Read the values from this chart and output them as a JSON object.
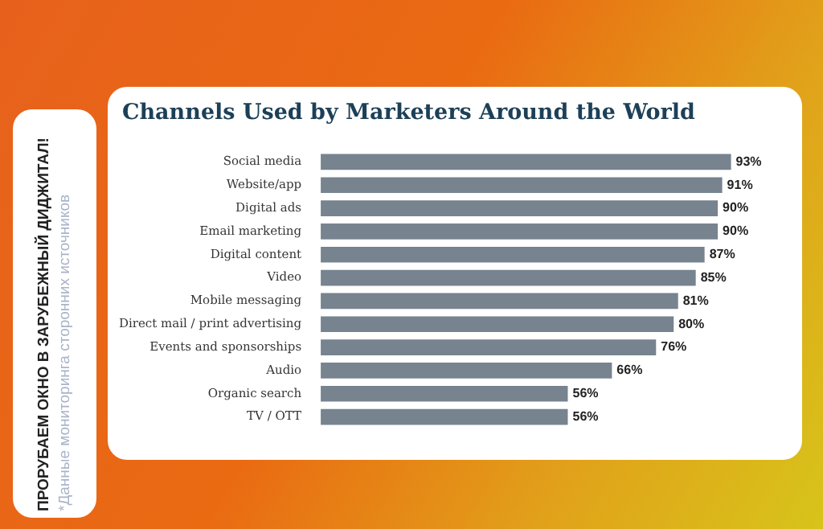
{
  "chart_data": {
    "type": "bar",
    "orientation": "horizontal",
    "title": "Channels Used by Marketers Around the World",
    "categories": [
      "Social media",
      "Website/app",
      "Digital ads",
      "Email marketing",
      "Digital content",
      "Video",
      "Mobile messaging",
      "Direct mail / print advertising",
      "Events and sponsorships",
      "Audio",
      "Organic search",
      "TV / OTT"
    ],
    "values": [
      93,
      91,
      90,
      90,
      87,
      85,
      81,
      80,
      76,
      66,
      56,
      56
    ],
    "value_labels": [
      "93%",
      "91%",
      "90%",
      "90%",
      "87%",
      "85%",
      "81%",
      "80%",
      "76%",
      "66%",
      "56%",
      "56%"
    ],
    "color": "#77838f",
    "legend": false,
    "annotations": [
      "ПРОРУБАЕМ ОКНО В ЗАРУБЕЖНЫЙ ДИДЖИТАЛ!",
      "*Данные мониторинга сторонних источников"
    ]
  }
}
